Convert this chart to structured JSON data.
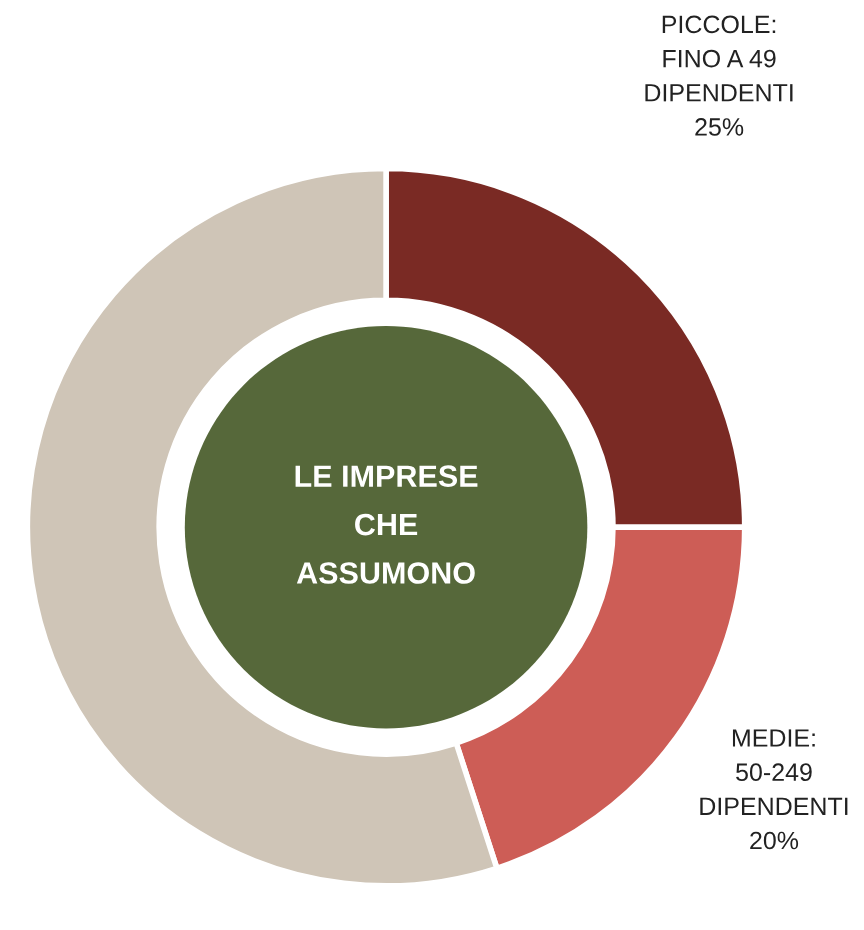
{
  "chart_data": {
    "type": "donut",
    "categories": [
      "PICCOLE:\nFINO A 49\nDIPENDENTI",
      "MEDIE:\n50-249\nDIPENDENTI",
      null
    ],
    "values": [
      25,
      20,
      55
    ],
    "colors": [
      "#7a2a24",
      "#cd5d56",
      "#cfc5b7"
    ],
    "value_labels": [
      "25%",
      "20%",
      null
    ],
    "annotations": [
      "LE IMPRESE\nCHE\nASSUMONO"
    ]
  }
}
